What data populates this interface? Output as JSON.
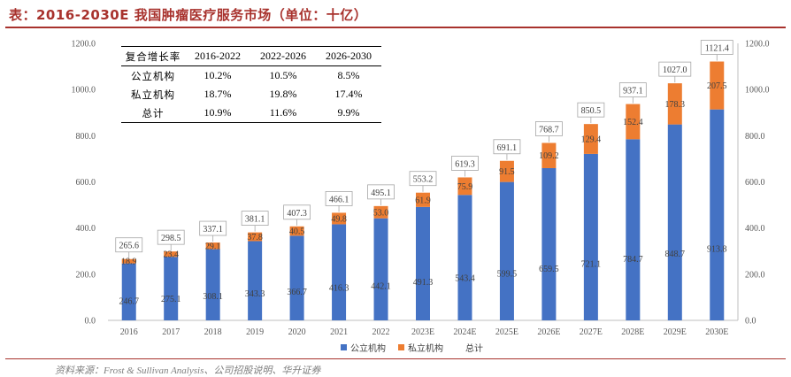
{
  "title": "表：2016-2030E 我国肿瘤医疗服务市场（单位：十亿）",
  "source": "资料来源：Frost & Sullivan Analysis、公司招股说明、华升证券",
  "colors": {
    "public": "#4472c4",
    "private": "#ed7d31",
    "accent": "#a8322d"
  },
  "table": {
    "headers": [
      "复合增长率",
      "2016-2022",
      "2022-2026",
      "2026-2030"
    ],
    "rows": [
      {
        "label": "公立机构",
        "values": [
          "10.2%",
          "10.5%",
          "8.5%"
        ]
      },
      {
        "label": "私立机构",
        "values": [
          "18.7%",
          "19.8%",
          "17.4%"
        ]
      },
      {
        "label": "总计",
        "values": [
          "10.9%",
          "11.6%",
          "9.9%"
        ]
      }
    ]
  },
  "legend": {
    "public": "公立机构",
    "private": "私立机构",
    "total": "总计"
  },
  "chart_data": {
    "type": "bar",
    "stacked": true,
    "categories": [
      "2016",
      "2017",
      "2018",
      "2019",
      "2020",
      "2021",
      "2022",
      "2023E",
      "2024E",
      "2025E",
      "2026E",
      "2027E",
      "2028E",
      "2029E",
      "2030E"
    ],
    "series": [
      {
        "name": "公立机构",
        "values": [
          246.7,
          275.1,
          308.1,
          343.3,
          366.7,
          416.3,
          442.1,
          491.3,
          543.4,
          599.5,
          659.5,
          721.1,
          784.7,
          848.7,
          913.8
        ]
      },
      {
        "name": "私立机构",
        "values": [
          18.9,
          23.4,
          29.1,
          37.8,
          40.5,
          49.8,
          53.0,
          61.9,
          75.9,
          91.5,
          109.2,
          129.4,
          152.4,
          178.3,
          207.5
        ]
      }
    ],
    "totals": [
      "265.6",
      "298.5",
      "337.1",
      "381.1",
      "407.3",
      "466.1",
      "495.1",
      "553.2",
      "619.3",
      "691.1",
      "768.7",
      "850.5",
      "937.1",
      "1027.0",
      "1121.4"
    ],
    "public_labels": [
      "246.7",
      "275.1",
      "308.1",
      "343.3",
      "366.7",
      "416.3",
      "442.1",
      "491.3",
      "543.4",
      "599.5",
      "659.5",
      "721.1",
      "784.7",
      "848.7",
      "913.8"
    ],
    "private_labels": [
      "18.9",
      "23.4",
      "29.1",
      "37.8",
      "40.5",
      "49.8",
      "53.0",
      "61.9",
      "75.9",
      "91.5",
      "109.2",
      "129.4",
      "152.4",
      "178.3",
      "207.5"
    ],
    "ylim": [
      0,
      1200
    ],
    "yticks": [
      "0.0",
      "200.0",
      "400.0",
      "600.0",
      "800.0",
      "1000.0",
      "1200.0"
    ],
    "legend_position": "bottom"
  }
}
